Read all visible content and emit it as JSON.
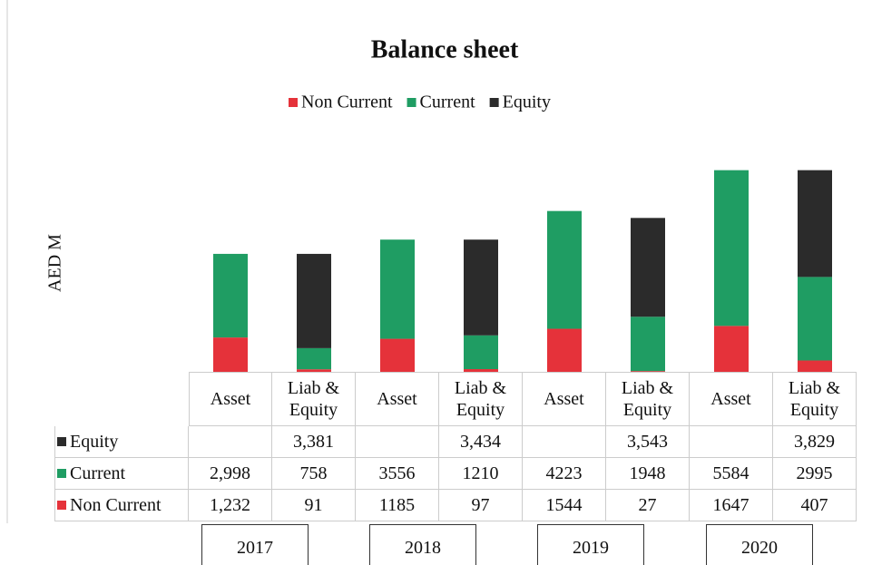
{
  "chart_data": {
    "type": "stacked_bar",
    "title": "Balance sheet",
    "y_label": "AED M",
    "categories": [
      "Asset",
      "Liab & Equity",
      "Asset",
      "Liab & Equity",
      "Asset",
      "Liab & Equity",
      "Asset",
      "Liab & Equity"
    ],
    "groups": [
      "2017",
      "2018",
      "2019",
      "2020"
    ],
    "series": [
      {
        "name": "Non Current",
        "color": "#e5323a",
        "values": [
          1232,
          91,
          1185,
          97,
          1544,
          27,
          1647,
          407
        ],
        "value_labels": [
          "1,232",
          "91",
          "1185",
          "97",
          "1544",
          "27",
          "1647",
          "407"
        ]
      },
      {
        "name": "Current",
        "color": "#1f9d63",
        "values": [
          2998,
          758,
          3556,
          1210,
          4223,
          1948,
          5584,
          2995
        ],
        "value_labels": [
          "2,998",
          "758",
          "3556",
          "1210",
          "4223",
          "1948",
          "5584",
          "2995"
        ]
      },
      {
        "name": "Equity",
        "color": "#2b2b2b",
        "values": [
          null,
          3381,
          null,
          3434,
          null,
          3543,
          null,
          3829
        ],
        "value_labels": [
          null,
          "3,381",
          null,
          "3,434",
          null,
          "3,543",
          null,
          "3,829"
        ]
      }
    ],
    "ylim": [
      0,
      8000
    ],
    "legend": "top"
  }
}
